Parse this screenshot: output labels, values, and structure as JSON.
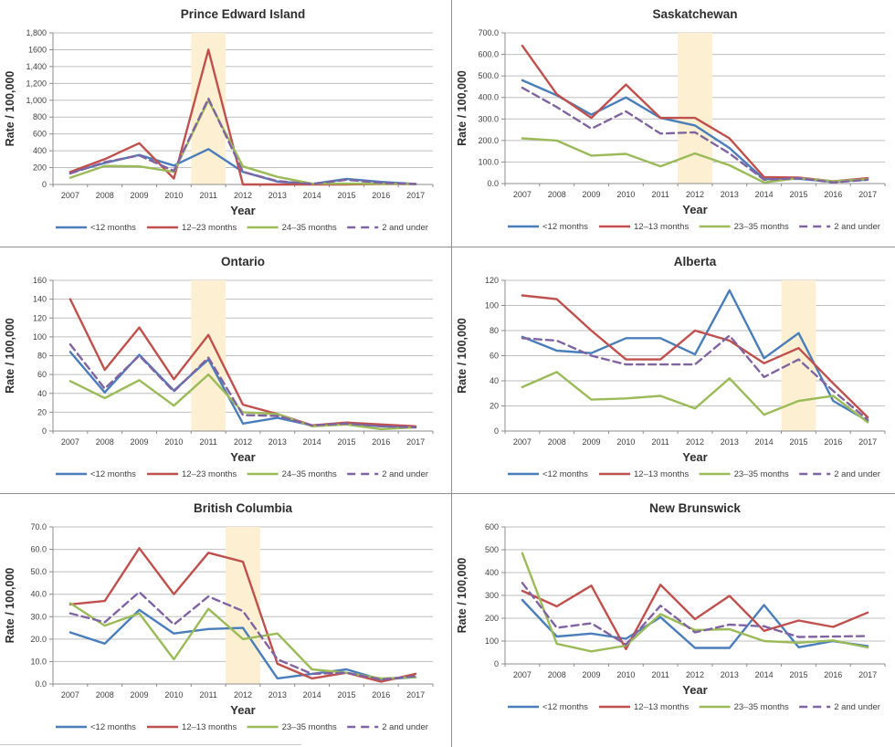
{
  "figure": {
    "ylabel": "Rate / 100,000",
    "xlabel": "Year",
    "colors": {
      "blue": "#4A7EBB",
      "red": "#C0504D",
      "green": "#9BBB59",
      "purple": "#8064A2",
      "band": "#FDEFD1",
      "grid": "#BFBFBF",
      "axis": "#8C8C8C",
      "tick_text": "#3F3F3F",
      "title_text": "#2E2E2E"
    }
  },
  "chart_data": [
    {
      "type": "line",
      "title": "Prince Edward Island",
      "xlabel": "Year",
      "ylabel": "Rate / 100,000",
      "x": [
        "2007",
        "2008",
        "2009",
        "2010",
        "2011",
        "2012",
        "2013",
        "2014",
        "2015",
        "2016",
        "2017"
      ],
      "ylim": [
        0,
        1800
      ],
      "yticks": [
        "0",
        "200",
        "400",
        "600",
        "800",
        "1,000",
        "1,200",
        "1,400",
        "1600",
        "1,800"
      ],
      "highlight_year": "2011",
      "legend_position": "bottom",
      "grid": true,
      "series": [
        {
          "name": "<12 months",
          "color": "blue",
          "dash": false,
          "values": [
            140,
            255,
            350,
            225,
            420,
            150,
            35,
            5,
            65,
            30,
            5
          ]
        },
        {
          "name": "12–23 months",
          "color": "red",
          "dash": false,
          "values": [
            150,
            300,
            490,
            70,
            1600,
            0,
            0,
            0,
            0,
            5,
            5
          ]
        },
        {
          "name": "24–35 months",
          "color": "green",
          "dash": false,
          "values": [
            80,
            220,
            215,
            150,
            1000,
            215,
            90,
            10,
            10,
            8,
            8
          ]
        },
        {
          "name": "2 and under",
          "color": "purple",
          "dash": true,
          "values": [
            130,
            265,
            345,
            160,
            1020,
            150,
            40,
            5,
            55,
            20,
            5
          ]
        }
      ]
    },
    {
      "type": "line",
      "title": "Saskatchewan",
      "xlabel": "Year",
      "ylabel": "Rate / 100,000",
      "x": [
        "2007",
        "2008",
        "2009",
        "2010",
        "2011",
        "2012",
        "2013",
        "2014",
        "2015",
        "2016",
        "2017"
      ],
      "ylim": [
        0,
        700
      ],
      "yticks": [
        "0.0",
        "100.0",
        "200.0",
        "300.0",
        "400.0",
        "500.0",
        "600.0",
        "700.0"
      ],
      "highlight_year": "2012",
      "legend_position": "bottom",
      "grid": true,
      "series": [
        {
          "name": "<12 months",
          "color": "blue",
          "dash": false,
          "values": [
            480,
            410,
            320,
            400,
            305,
            270,
            165,
            20,
            22,
            8,
            18
          ]
        },
        {
          "name": "12–13 months",
          "color": "red",
          "dash": false,
          "values": [
            640,
            415,
            305,
            460,
            305,
            305,
            210,
            30,
            28,
            10,
            25
          ]
        },
        {
          "name": "23–35 months",
          "color": "green",
          "dash": false,
          "values": [
            210,
            200,
            130,
            138,
            80,
            140,
            85,
            5,
            25,
            10,
            20
          ]
        },
        {
          "name": "2 and under",
          "color": "purple",
          "dash": true,
          "values": [
            445,
            355,
            255,
            335,
            232,
            238,
            140,
            18,
            25,
            5,
            18
          ]
        }
      ]
    },
    {
      "type": "line",
      "title": "Ontario",
      "xlabel": "Year",
      "ylabel": "Rate / 100,000",
      "x": [
        "2007",
        "2008",
        "2009",
        "2010",
        "2011",
        "2012",
        "2013",
        "2014",
        "2015",
        "2016",
        "2017"
      ],
      "ylim": [
        0,
        160
      ],
      "yticks": [
        "0",
        "20",
        "40",
        "60",
        "80",
        "100",
        "120",
        "140",
        "160"
      ],
      "highlight_year": "2011",
      "legend_position": "bottom",
      "grid": true,
      "series": [
        {
          "name": "<12 months",
          "color": "blue",
          "dash": false,
          "values": [
            84,
            41,
            81,
            43,
            76,
            8,
            14,
            6,
            8,
            5,
            4
          ]
        },
        {
          "name": "12–23 months",
          "color": "red",
          "dash": false,
          "values": [
            140,
            65,
            110,
            55,
            102,
            28,
            18,
            6,
            9,
            7,
            5
          ]
        },
        {
          "name": "24–35 months",
          "color": "green",
          "dash": false,
          "values": [
            53,
            35,
            54,
            27,
            60,
            20,
            18,
            5,
            7,
            2,
            4
          ]
        },
        {
          "name": "2 and under",
          "color": "purple",
          "dash": true,
          "values": [
            92,
            45,
            80,
            42,
            78,
            17,
            16,
            6,
            8,
            5,
            4
          ]
        }
      ]
    },
    {
      "type": "line",
      "title": "Alberta",
      "xlabel": "Year",
      "ylabel": "Rate / 100,000",
      "x": [
        "2007",
        "2008",
        "2009",
        "2010",
        "2011",
        "2012",
        "2013",
        "2014",
        "2015",
        "2016",
        "2017"
      ],
      "ylim": [
        0,
        120
      ],
      "yticks": [
        "0",
        "20",
        "40",
        "60",
        "80",
        "100",
        "120"
      ],
      "highlight_year": "2015",
      "legend_position": "bottom",
      "grid": true,
      "series": [
        {
          "name": "<12 months",
          "color": "blue",
          "dash": false,
          "values": [
            75,
            64,
            62,
            74,
            74,
            61,
            112,
            58,
            78,
            24,
            8
          ]
        },
        {
          "name": "12–13 months",
          "color": "red",
          "dash": false,
          "values": [
            108,
            105,
            80,
            57,
            57,
            80,
            72,
            54,
            66,
            38,
            11
          ]
        },
        {
          "name": "23–35 months",
          "color": "green",
          "dash": false,
          "values": [
            35,
            47,
            25,
            26,
            28,
            18,
            42,
            13,
            24,
            28,
            7
          ]
        },
        {
          "name": "2 and under",
          "color": "purple",
          "dash": true,
          "values": [
            74,
            72,
            60,
            53,
            53,
            53,
            76,
            43,
            57,
            32,
            9
          ]
        }
      ]
    },
    {
      "type": "line",
      "title": "British Columbia",
      "xlabel": "Year",
      "ylabel": "Rate / 100,000",
      "x": [
        "2007",
        "2008",
        "2009",
        "2010",
        "2011",
        "2012",
        "2013",
        "2014",
        "2015",
        "2016",
        "2017"
      ],
      "ylim": [
        0,
        70
      ],
      "yticks": [
        "0.0",
        "10.0",
        "20.0",
        "30.0",
        "40.0",
        "50.0",
        "60.0",
        "70.0"
      ],
      "highlight_year": "2012",
      "legend_position": "bottom",
      "grid": true,
      "series": [
        {
          "name": "<12 months",
          "color": "blue",
          "dash": false,
          "values": [
            23,
            18,
            33,
            22.5,
            24.5,
            25,
            2.5,
            4.5,
            6.5,
            2,
            3
          ]
        },
        {
          "name": "12–13 months",
          "color": "red",
          "dash": false,
          "values": [
            35.5,
            37,
            60.5,
            40,
            58.5,
            54.5,
            9,
            2.5,
            5,
            1,
            4.5
          ]
        },
        {
          "name": "23–35 months",
          "color": "green",
          "dash": false,
          "values": [
            36,
            26,
            31.5,
            11,
            33.5,
            20,
            22.5,
            6.5,
            5,
            2.5,
            3
          ]
        },
        {
          "name": "2 and under",
          "color": "purple",
          "dash": true,
          "values": [
            31.5,
            27.5,
            41,
            26.5,
            39,
            32.5,
            11,
            4.5,
            5,
            2,
            3.5
          ]
        }
      ]
    },
    {
      "type": "line",
      "title": "New Brunswick",
      "xlabel": "Year",
      "ylabel": "Rate / 100,000",
      "x": [
        "2007",
        "2008",
        "2009",
        "2010",
        "2011",
        "2012",
        "2013",
        "2014",
        "2015",
        "2016",
        "2017"
      ],
      "ylim": [
        0,
        600
      ],
      "yticks": [
        "0",
        "100",
        "200",
        "300",
        "400",
        "500",
        "600"
      ],
      "highlight_year": null,
      "legend_position": "bottom",
      "grid": true,
      "series": [
        {
          "name": "<12 months",
          "color": "blue",
          "dash": false,
          "values": [
            280,
            120,
            133,
            110,
            205,
            70,
            70,
            258,
            73,
            100,
            78
          ]
        },
        {
          "name": "12–13 months",
          "color": "red",
          "dash": false,
          "values": [
            320,
            252,
            343,
            65,
            347,
            196,
            298,
            145,
            190,
            162,
            225
          ]
        },
        {
          "name": "23–35 months",
          "color": "green",
          "dash": false,
          "values": [
            485,
            88,
            55,
            80,
            218,
            148,
            152,
            100,
            93,
            103,
            72
          ]
        },
        {
          "name": "2 and under",
          "color": "purple",
          "dash": true,
          "values": [
            355,
            158,
            178,
            85,
            255,
            138,
            172,
            165,
            118,
            120,
            122
          ]
        }
      ]
    }
  ]
}
